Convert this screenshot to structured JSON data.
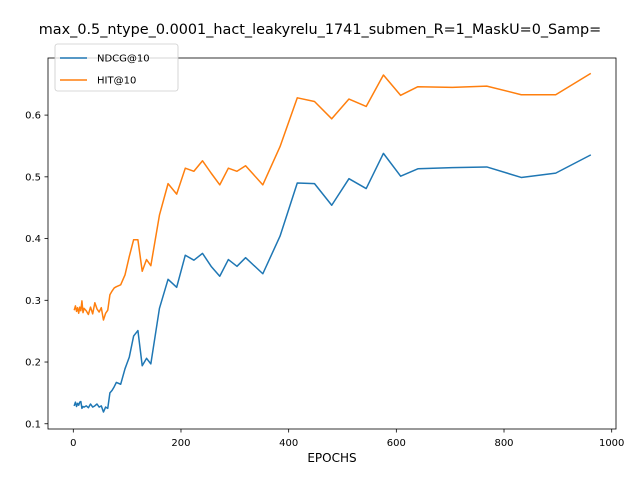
{
  "chart_data": {
    "type": "line",
    "title": "max_0.5_ntype_0.0001_hact_leakyrelu_1741_submen_R=1_MaskU=0_Samp=",
    "xlabel": "EPOCHS",
    "ylabel": "",
    "xlim": [
      -47,
      1008
    ],
    "ylim": [
      0.0915,
      0.6925
    ],
    "xticks": [
      0,
      200,
      400,
      600,
      800,
      1000
    ],
    "yticks": [
      0.1,
      0.2,
      0.3,
      0.4,
      0.5,
      0.6
    ],
    "xtick_labels": [
      "0",
      "200",
      "400",
      "600",
      "800",
      "1000"
    ],
    "ytick_labels": [
      "0.1",
      "0.2",
      "0.3",
      "0.4",
      "0.5",
      "0.6"
    ],
    "grid": false,
    "legend_position": "top-left",
    "series": [
      {
        "name": "NDCG@10",
        "color": "#1f77b4",
        "x": [
          2,
          4,
          6,
          8,
          10,
          12,
          14,
          16,
          18,
          20,
          24,
          28,
          32,
          36,
          40,
          44,
          48,
          52,
          56,
          60,
          64,
          68,
          72,
          76,
          80,
          88,
          96,
          104,
          112,
          120,
          128,
          136,
          144,
          160,
          176,
          192,
          208,
          224,
          240,
          256,
          272,
          288,
          304,
          320,
          352,
          384,
          416,
          448,
          480,
          512,
          544,
          576,
          608,
          640,
          704,
          768,
          832,
          896,
          960
        ],
        "y": [
          0.13,
          0.135,
          0.128,
          0.133,
          0.13,
          0.135,
          0.136,
          0.125,
          0.128,
          0.127,
          0.129,
          0.126,
          0.132,
          0.127,
          0.129,
          0.132,
          0.127,
          0.129,
          0.119,
          0.127,
          0.125,
          0.15,
          0.154,
          0.16,
          0.167,
          0.164,
          0.189,
          0.208,
          0.242,
          0.251,
          0.194,
          0.206,
          0.197,
          0.287,
          0.334,
          0.321,
          0.373,
          0.365,
          0.376,
          0.355,
          0.339,
          0.366,
          0.355,
          0.369,
          0.343,
          0.404,
          0.49,
          0.489,
          0.454,
          0.497,
          0.481,
          0.538,
          0.501,
          0.513,
          0.515,
          0.516,
          0.499,
          0.506,
          0.535
        ]
      },
      {
        "name": "HIT@10",
        "color": "#ff7f0e",
        "x": [
          2,
          4,
          6,
          8,
          10,
          12,
          14,
          16,
          18,
          20,
          24,
          28,
          32,
          36,
          40,
          44,
          48,
          52,
          56,
          60,
          64,
          68,
          72,
          76,
          80,
          88,
          96,
          104,
          112,
          120,
          128,
          136,
          144,
          160,
          176,
          192,
          208,
          224,
          240,
          256,
          272,
          288,
          304,
          320,
          352,
          384,
          416,
          448,
          480,
          512,
          544,
          576,
          608,
          640,
          704,
          768,
          832,
          896,
          960
        ],
        "y": [
          0.285,
          0.291,
          0.282,
          0.288,
          0.279,
          0.289,
          0.283,
          0.299,
          0.28,
          0.287,
          0.283,
          0.277,
          0.289,
          0.278,
          0.296,
          0.286,
          0.281,
          0.288,
          0.268,
          0.279,
          0.284,
          0.309,
          0.315,
          0.32,
          0.322,
          0.325,
          0.341,
          0.371,
          0.398,
          0.398,
          0.347,
          0.366,
          0.356,
          0.438,
          0.489,
          0.472,
          0.514,
          0.509,
          0.526,
          0.506,
          0.487,
          0.514,
          0.509,
          0.518,
          0.487,
          0.549,
          0.628,
          0.622,
          0.594,
          0.626,
          0.614,
          0.665,
          0.632,
          0.646,
          0.645,
          0.647,
          0.633,
          0.633,
          0.667
        ]
      }
    ]
  }
}
